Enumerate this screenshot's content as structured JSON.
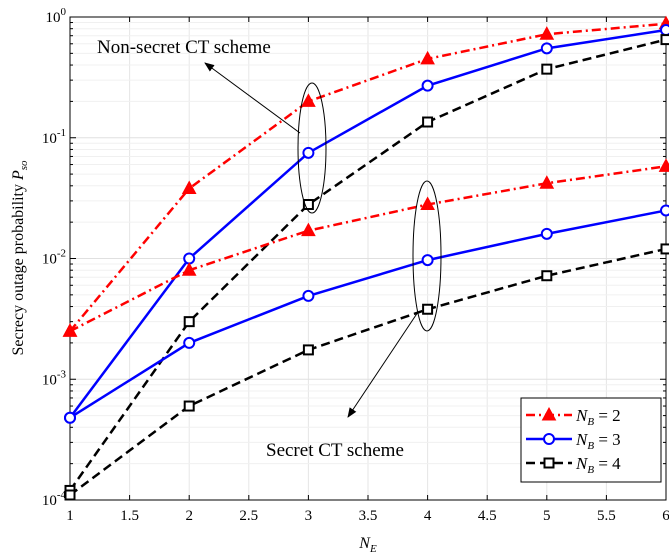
{
  "chart_data": {
    "type": "line",
    "xlabel": "N_E",
    "ylabel": "Secrecy outage probability P_so",
    "x": [
      1,
      2,
      3,
      4,
      5,
      6
    ],
    "xlim": [
      1,
      6
    ],
    "xticks": [
      "1",
      "1.5",
      "2",
      "2.5",
      "3",
      "3.5",
      "4",
      "4.5",
      "5",
      "5.5",
      "6"
    ],
    "ylim": [
      0.0001,
      1
    ],
    "yscale": "log",
    "yticks": [
      "10^-4",
      "10^-3",
      "10^-2",
      "10^-1",
      "10^0"
    ],
    "grid": true,
    "legend_position": "bottom-right",
    "series": [
      {
        "name": "N_B = 2",
        "group": "Non-secret CT scheme",
        "color": "#ff0000",
        "line": "dash-dot",
        "marker": "triangle",
        "values": [
          0.0025,
          0.038,
          0.2,
          0.45,
          0.72,
          0.88
        ]
      },
      {
        "name": "N_B = 3",
        "group": "Non-secret CT scheme",
        "color": "#0000ff",
        "line": "solid",
        "marker": "circle",
        "values": [
          0.00048,
          0.01,
          0.075,
          0.27,
          0.55,
          0.78
        ]
      },
      {
        "name": "N_B = 4",
        "group": "Non-secret CT scheme",
        "color": "#000000",
        "line": "dashed",
        "marker": "square",
        "values": [
          0.00012,
          0.003,
          0.028,
          0.135,
          0.37,
          0.65
        ]
      },
      {
        "name": "N_B = 2",
        "group": "Secret CT scheme",
        "color": "#ff0000",
        "line": "dash-dot",
        "marker": "triangle",
        "values": [
          0.0025,
          0.008,
          0.017,
          0.028,
          0.042,
          0.058
        ]
      },
      {
        "name": "N_B = 3",
        "group": "Secret CT scheme",
        "color": "#0000ff",
        "line": "solid",
        "marker": "circle",
        "values": [
          0.00048,
          0.002,
          0.0049,
          0.0097,
          0.016,
          0.025
        ]
      },
      {
        "name": "N_B = 4",
        "group": "Secret CT scheme",
        "color": "#000000",
        "line": "dashed",
        "marker": "square",
        "values": [
          0.00011,
          0.0006,
          0.00175,
          0.0038,
          0.0072,
          0.012
        ]
      }
    ],
    "annotations": [
      "Non-secret CT scheme",
      "Secret CT scheme"
    ]
  }
}
